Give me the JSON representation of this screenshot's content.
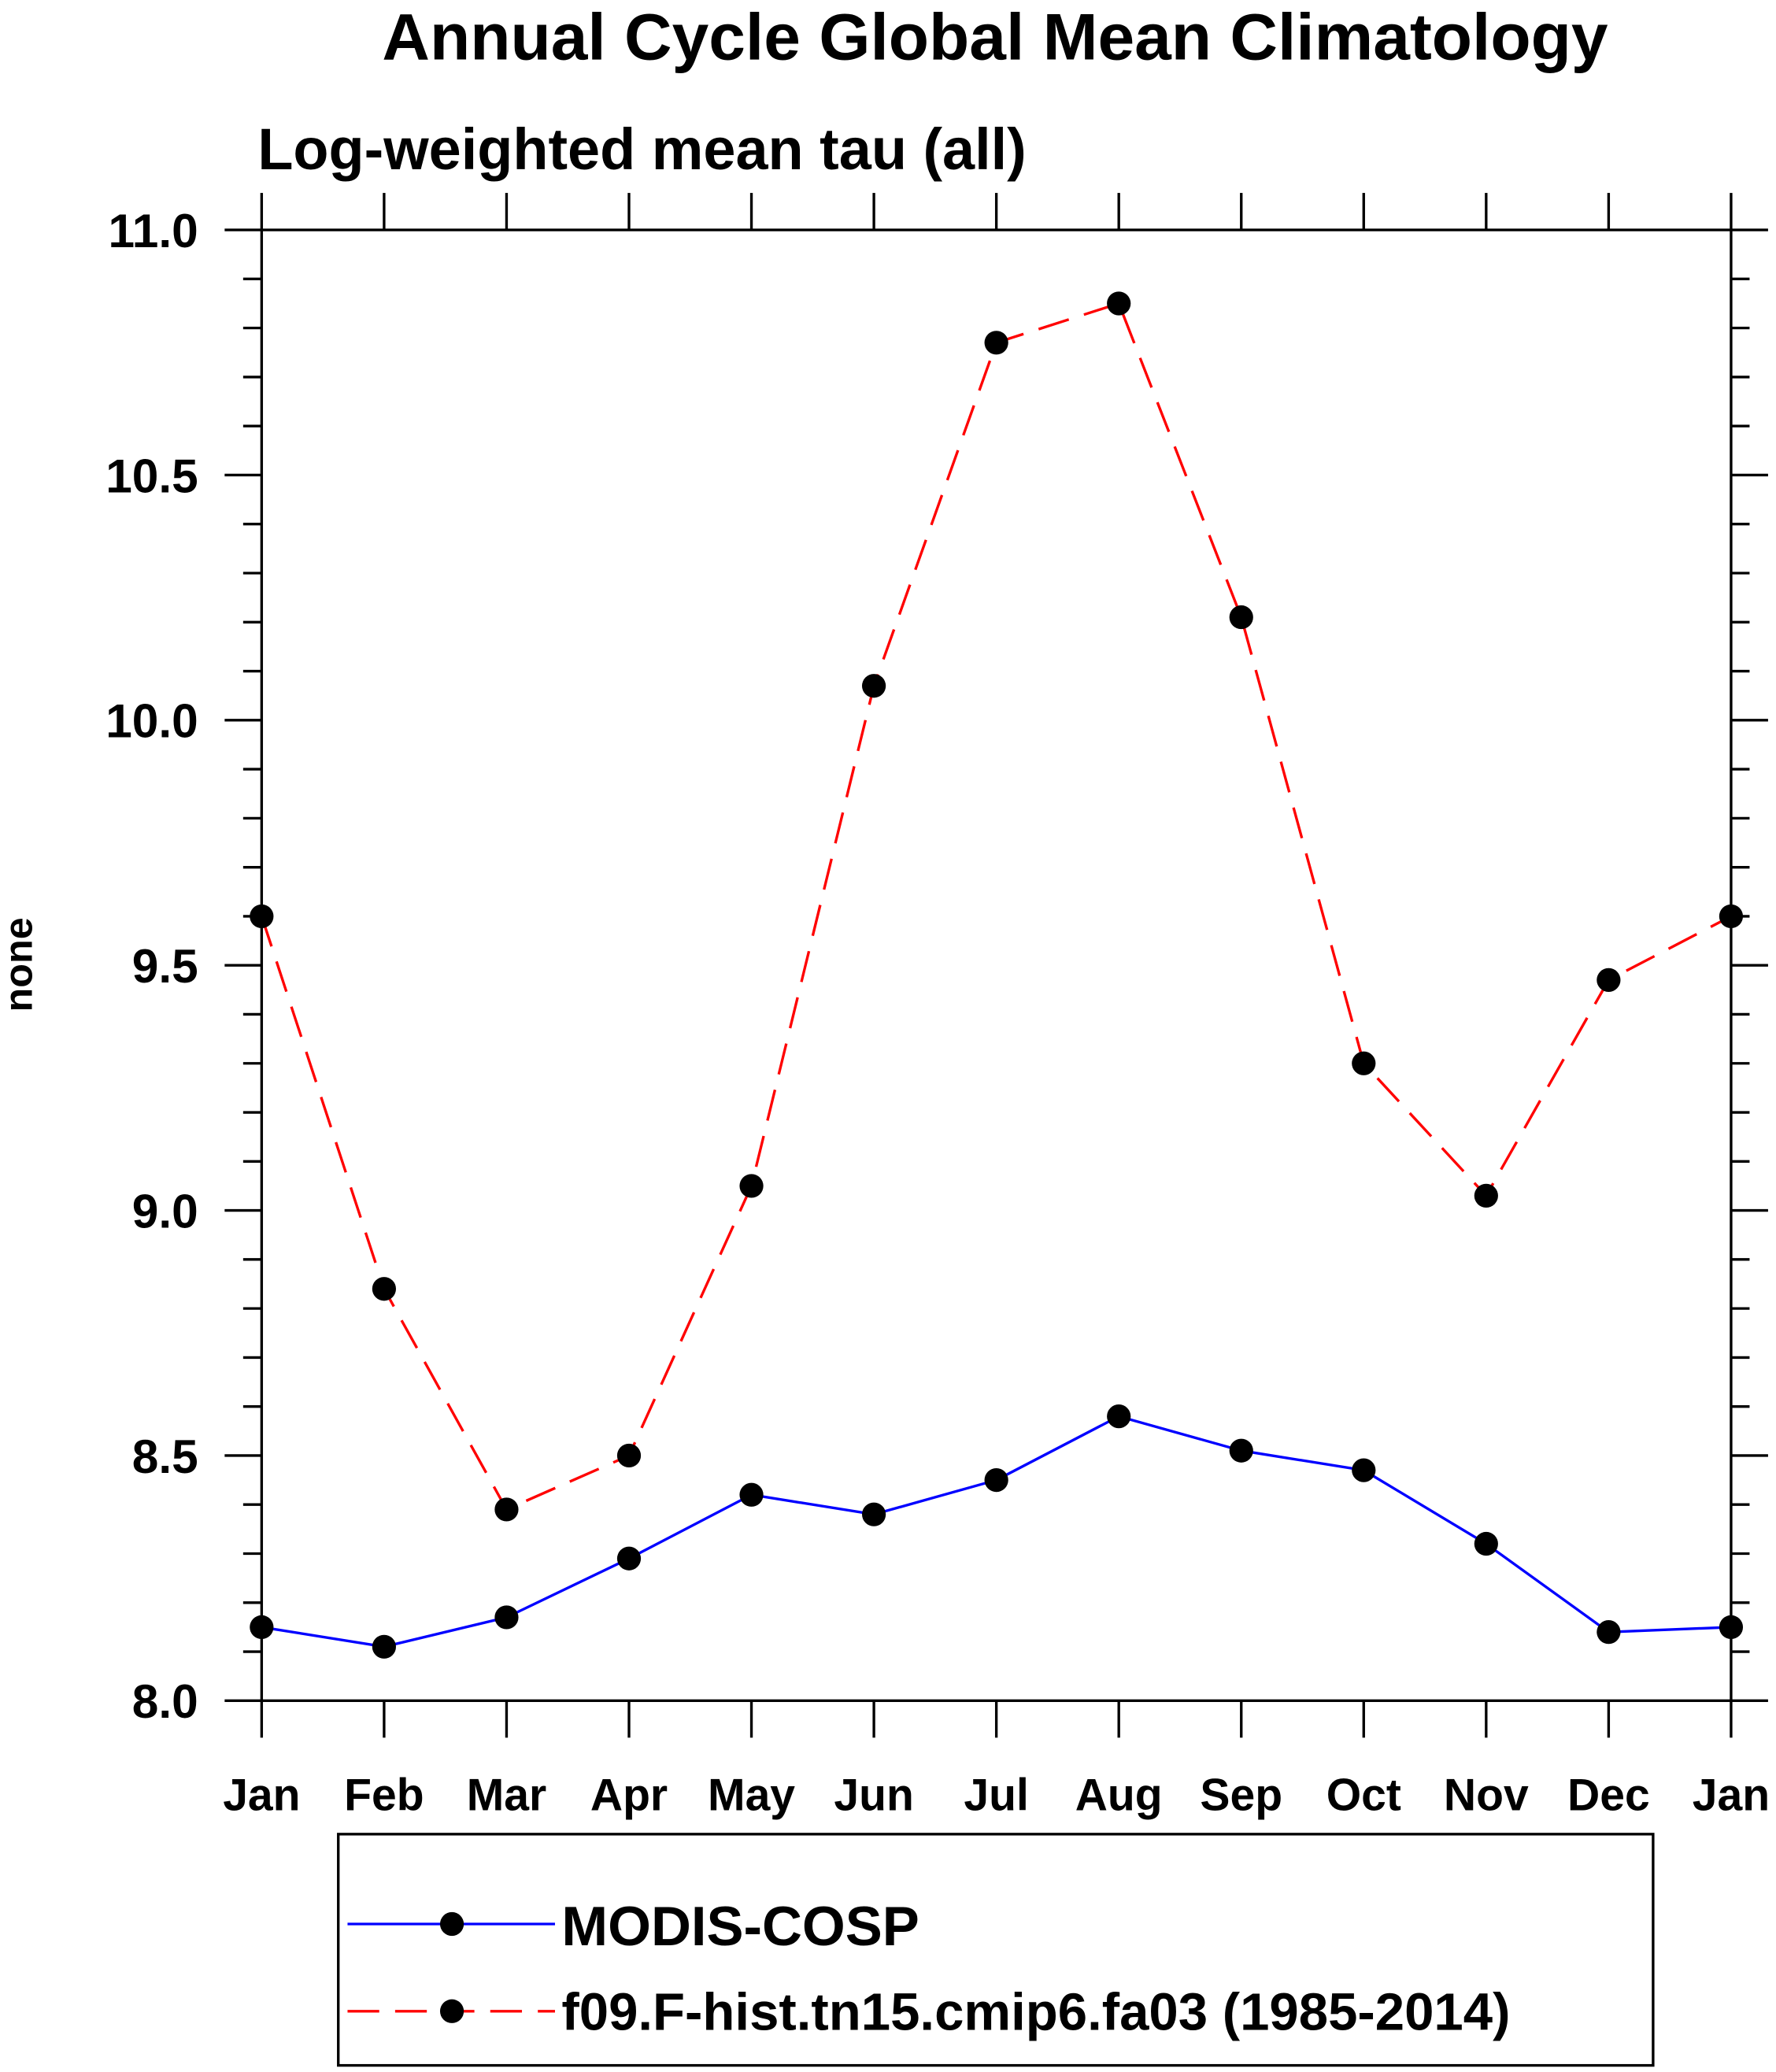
{
  "chart_data": {
    "type": "line",
    "title": "Annual Cycle Global Mean Climatology",
    "subtitle": "Log-weighted mean tau (all)",
    "xlabel": "",
    "ylabel": "none",
    "categories": [
      "Jan",
      "Feb",
      "Mar",
      "Apr",
      "May",
      "Jun",
      "Jul",
      "Aug",
      "Sep",
      "Oct",
      "Nov",
      "Dec",
      "Jan"
    ],
    "ylim": [
      8.0,
      11.0
    ],
    "yticks": [
      "8.0",
      "8.5",
      "9.0",
      "9.5",
      "10.0",
      "10.5",
      "11.0"
    ],
    "grid": false,
    "legend_placement": "bottom",
    "series": [
      {
        "name": "MODIS-COSP",
        "color": "#0000ff",
        "dash": "solid",
        "values": [
          8.15,
          8.11,
          8.17,
          8.29,
          8.42,
          8.38,
          8.45,
          8.58,
          8.51,
          8.47,
          8.32,
          8.14,
          8.15
        ]
      },
      {
        "name": "f09.F-hist.tn15.cmip6.fa03 (1985-2014)",
        "color": "#ff0000",
        "dash": "dashed",
        "values": [
          9.6,
          8.84,
          8.39,
          8.5,
          9.05,
          10.07,
          10.77,
          10.85,
          10.21,
          9.3,
          9.03,
          9.47,
          9.6
        ]
      }
    ]
  }
}
